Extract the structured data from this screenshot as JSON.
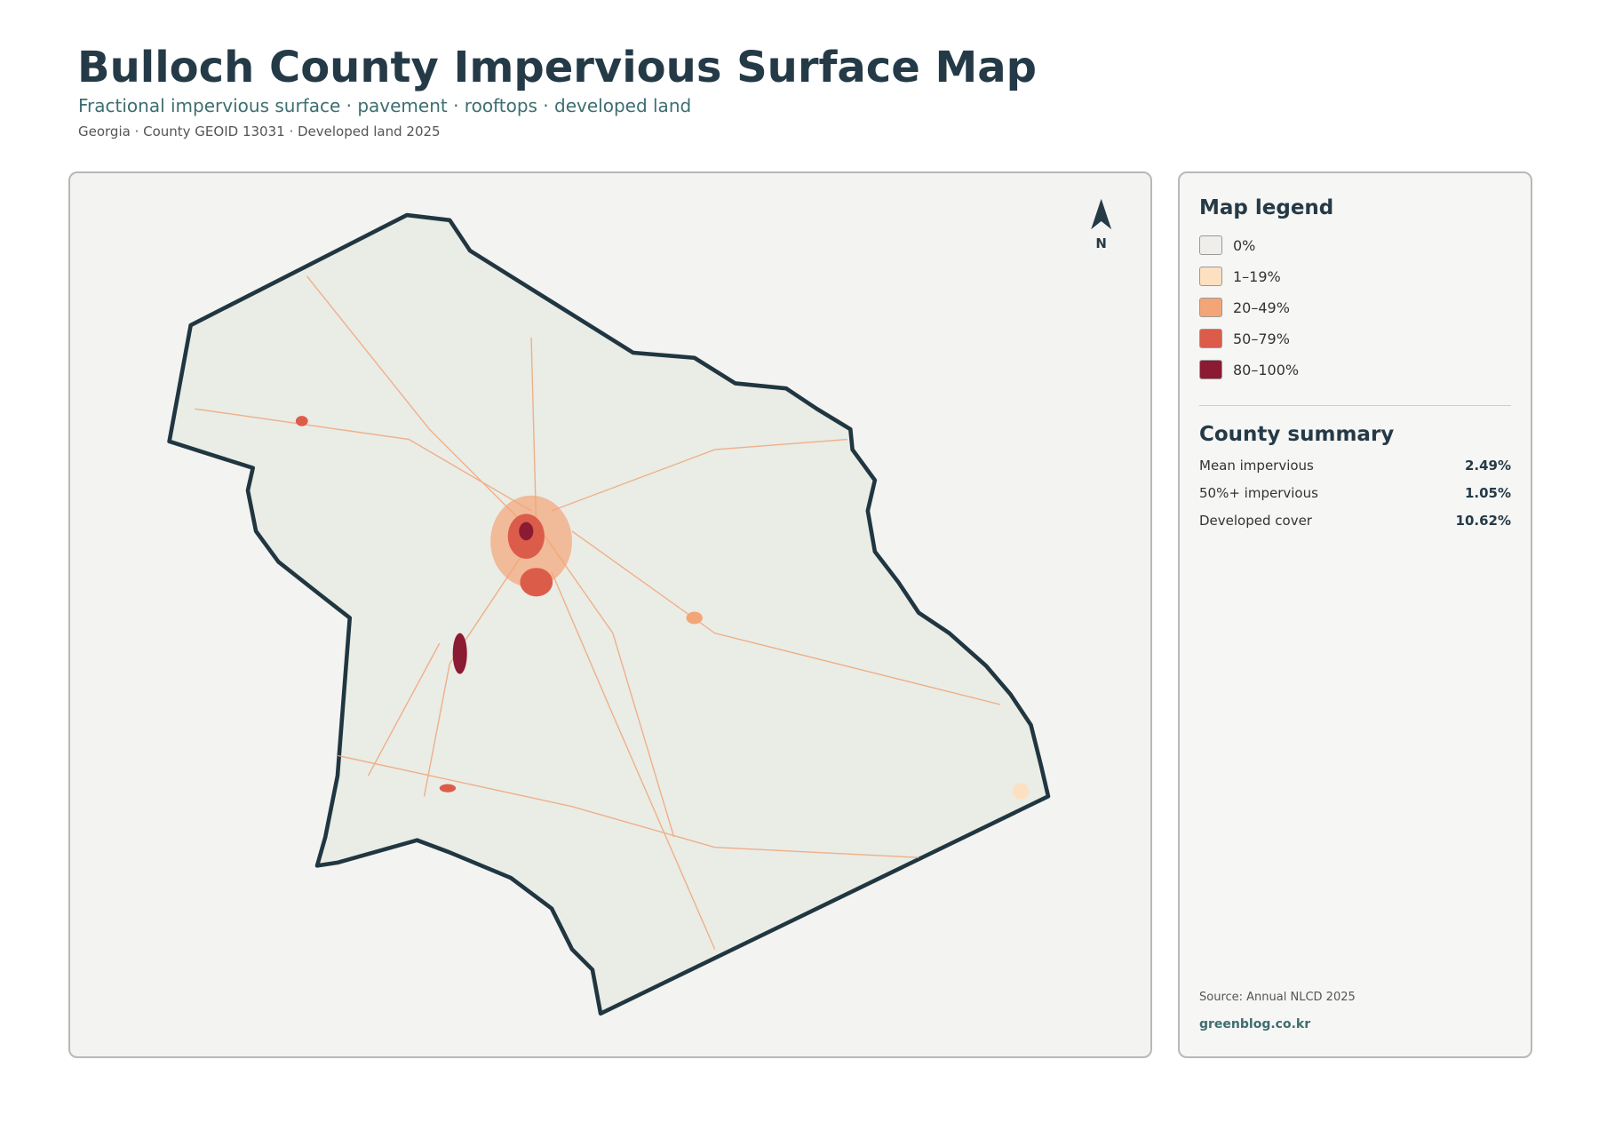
{
  "header": {
    "title": "Bulloch County Impervious Surface Map",
    "subtitle": "Fractional impervious surface · pavement · rooftops · developed land",
    "meta": "Georgia · County GEOID 13031 · Developed land 2025"
  },
  "map": {
    "north_label": "N"
  },
  "legend": {
    "title": "Map legend",
    "items": [
      {
        "label": "0%",
        "color": "#efeeeb"
      },
      {
        "label": "1–19%",
        "color": "#fde0c0"
      },
      {
        "label": "20–49%",
        "color": "#f4a578"
      },
      {
        "label": "50–79%",
        "color": "#dc5c4a"
      },
      {
        "label": "80–100%",
        "color": "#8b1a33"
      }
    ]
  },
  "summary": {
    "title": "County summary",
    "rows": [
      {
        "label": "Mean impervious",
        "value": "2.49%"
      },
      {
        "label": "50%+ impervious",
        "value": "1.05%"
      },
      {
        "label": "Developed cover",
        "value": "10.62%"
      }
    ]
  },
  "footer": {
    "source": "Source: Annual NLCD 2025",
    "credit": "greenblog.co.kr"
  }
}
